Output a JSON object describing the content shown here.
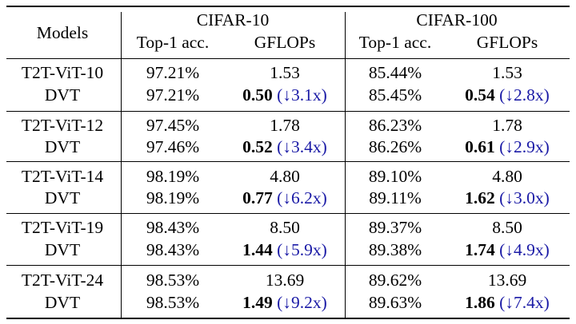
{
  "header": {
    "models": "Models",
    "groups": [
      "CIFAR-10",
      "CIFAR-100"
    ],
    "subcols": [
      "Top-1 acc.",
      "GFLOPs",
      "Top-1 acc.",
      "GFLOPs"
    ]
  },
  "rows": [
    {
      "base": {
        "model": "T2T-ViT-10",
        "c10_acc": "97.21%",
        "c10_gflops": "1.53",
        "c100_acc": "85.44%",
        "c100_gflops": "1.53"
      },
      "dvt": {
        "model": "DVT",
        "c10_acc": "97.21%",
        "c10_gflops": "0.50",
        "c10_red": "(↓3.1x)",
        "c100_acc": "85.45%",
        "c100_gflops": "0.54",
        "c100_red": "(↓2.8x)"
      }
    },
    {
      "base": {
        "model": "T2T-ViT-12",
        "c10_acc": "97.45%",
        "c10_gflops": "1.78",
        "c100_acc": "86.23%",
        "c100_gflops": "1.78"
      },
      "dvt": {
        "model": "DVT",
        "c10_acc": "97.46%",
        "c10_gflops": "0.52",
        "c10_red": "(↓3.4x)",
        "c100_acc": "86.26%",
        "c100_gflops": "0.61",
        "c100_red": "(↓2.9x)"
      }
    },
    {
      "base": {
        "model": "T2T-ViT-14",
        "c10_acc": "98.19%",
        "c10_gflops": "4.80",
        "c100_acc": "89.10%",
        "c100_gflops": "4.80"
      },
      "dvt": {
        "model": "DVT",
        "c10_acc": "98.19%",
        "c10_gflops": "0.77",
        "c10_red": "(↓6.2x)",
        "c100_acc": "89.11%",
        "c100_gflops": "1.62",
        "c100_red": "(↓3.0x)"
      }
    },
    {
      "base": {
        "model": "T2T-ViT-19",
        "c10_acc": "98.43%",
        "c10_gflops": "8.50",
        "c100_acc": "89.37%",
        "c100_gflops": "8.50"
      },
      "dvt": {
        "model": "DVT",
        "c10_acc": "98.43%",
        "c10_gflops": "1.44",
        "c10_red": "(↓5.9x)",
        "c100_acc": "89.38%",
        "c100_gflops": "1.74",
        "c100_red": "(↓4.9x)"
      }
    },
    {
      "base": {
        "model": "T2T-ViT-24",
        "c10_acc": "98.53%",
        "c10_gflops": "13.69",
        "c100_acc": "89.62%",
        "c100_gflops": "13.69"
      },
      "dvt": {
        "model": "DVT",
        "c10_acc": "98.53%",
        "c10_gflops": "1.49",
        "c10_red": "(↓9.2x)",
        "c100_acc": "89.63%",
        "c100_gflops": "1.86",
        "c100_red": "(↓7.4x)"
      }
    }
  ]
}
